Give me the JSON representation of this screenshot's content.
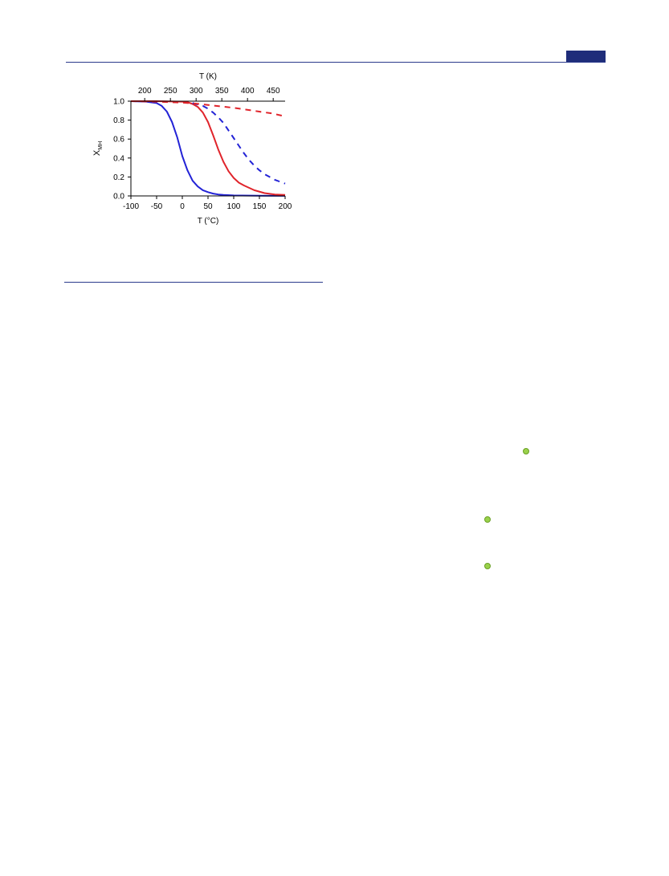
{
  "colors": {
    "header": "#1f2d7a",
    "rule": "#2b3a8c",
    "series_red": "#e0242b",
    "series_blue": "#2323d6",
    "marker": "#9ad14b"
  },
  "markers": [
    "green-dot-icon",
    "green-dot-icon",
    "green-dot-icon"
  ],
  "chart_data": {
    "type": "line",
    "title": "",
    "xlabel": "T (°C)",
    "ylabel": "XMH",
    "x2label": "T (K)",
    "xlim": [
      -100,
      200
    ],
    "ylim": [
      0,
      1.0
    ],
    "x_ticks": [
      "-100",
      "-50",
      "0",
      "50",
      "100",
      "150",
      "200"
    ],
    "y_ticks": [
      "0.0",
      "0.2",
      "0.4",
      "0.6",
      "0.8",
      "1.0"
    ],
    "x2_ticks": [
      "200",
      "250",
      "300",
      "350",
      "400",
      "450"
    ],
    "grid": false,
    "legend": false,
    "series": [
      {
        "color": "#2323d6",
        "dash": false,
        "x": [
          -100,
          -70,
          -50,
          -40,
          -30,
          -20,
          -10,
          0,
          10,
          20,
          30,
          40,
          50,
          60,
          70,
          80,
          100,
          150,
          200
        ],
        "y": [
          1.0,
          0.995,
          0.98,
          0.95,
          0.89,
          0.78,
          0.62,
          0.42,
          0.27,
          0.16,
          0.1,
          0.06,
          0.04,
          0.025,
          0.015,
          0.01,
          0.005,
          0.002,
          0.001
        ]
      },
      {
        "color": "#e0242b",
        "dash": false,
        "x": [
          -100,
          -50,
          0,
          10,
          20,
          30,
          40,
          50,
          60,
          70,
          80,
          90,
          100,
          110,
          120,
          140,
          160,
          180,
          200
        ],
        "y": [
          1.0,
          1.0,
          0.995,
          0.99,
          0.97,
          0.94,
          0.88,
          0.78,
          0.64,
          0.49,
          0.36,
          0.26,
          0.19,
          0.14,
          0.11,
          0.06,
          0.03,
          0.015,
          0.01
        ]
      },
      {
        "color": "#2323d6",
        "dash": true,
        "x": [
          20,
          30,
          40,
          50,
          60,
          70,
          80,
          90,
          100,
          110,
          120,
          130,
          140,
          150,
          160,
          170,
          180,
          190,
          200
        ],
        "y": [
          0.98,
          0.965,
          0.95,
          0.92,
          0.88,
          0.83,
          0.77,
          0.69,
          0.61,
          0.53,
          0.45,
          0.38,
          0.32,
          0.27,
          0.23,
          0.2,
          0.17,
          0.15,
          0.13
        ]
      },
      {
        "color": "#e0242b",
        "dash": true,
        "x": [
          -100,
          -50,
          0,
          25,
          50,
          75,
          100,
          125,
          150,
          175,
          200
        ],
        "y": [
          1.0,
          0.995,
          0.985,
          0.975,
          0.96,
          0.945,
          0.93,
          0.91,
          0.89,
          0.87,
          0.84
        ]
      }
    ]
  }
}
